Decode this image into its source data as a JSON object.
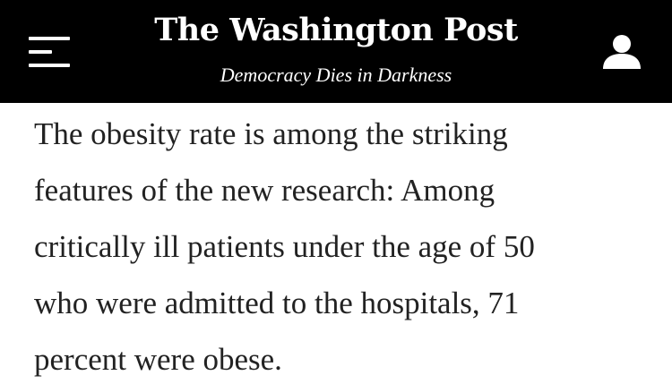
{
  "masthead": {
    "menu_icon": "hamburger-menu-icon",
    "logo_text": "The Washington Post",
    "tagline": "Democracy Dies in Darkness",
    "account_icon": "user-account-icon"
  },
  "article": {
    "lines": [
      "The obesity rate is among the striking",
      "features of the new research: Among",
      "critically ill patients under the age of 50",
      "who were admitted to the hospitals, 71",
      "percent were obese."
    ]
  },
  "colors": {
    "header_background": "#000000",
    "header_text": "#ffffff",
    "body_text": "#222222",
    "page_background": "#ffffff"
  }
}
